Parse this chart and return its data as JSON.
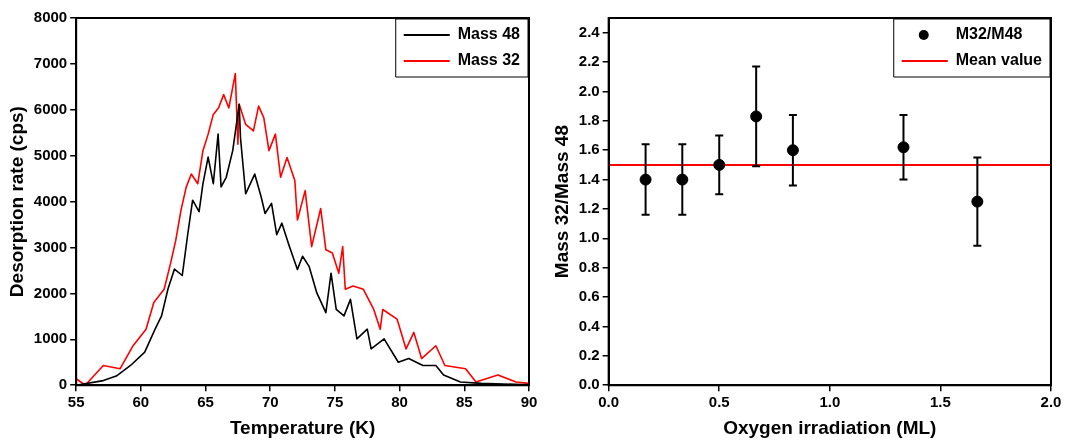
{
  "chart_data": [
    {
      "type": "line",
      "xlabel": "Temperature (K)",
      "ylabel": "Desorption rate (cps)",
      "xlim": [
        55,
        90
      ],
      "xticks": [
        55,
        60,
        65,
        70,
        75,
        80,
        85,
        90
      ],
      "ylim": [
        0,
        8000
      ],
      "yticks": [
        0,
        1000,
        2000,
        3000,
        4000,
        5000,
        6000,
        7000,
        8000
      ],
      "grid": false,
      "legend": "top right",
      "marker": "none",
      "series": [
        {
          "name": "Mass 48",
          "color": "#000000",
          "x": [
            55,
            57.1,
            58.1,
            59.2,
            60.3,
            61.1,
            61.6,
            62.1,
            62.6,
            63.2,
            63.6,
            64.0,
            64.5,
            64.8,
            65.2,
            65.6,
            65.97,
            66.2,
            66.6,
            67.1,
            67.6,
            67.7,
            68.1,
            68.8,
            69.3,
            69.6,
            70.1,
            70.5,
            70.9,
            71.4,
            72.1,
            72.5,
            73.0,
            73.6,
            74.3,
            74.7,
            75.1,
            75.7,
            76.2,
            76.7,
            77.5,
            77.8,
            78.8,
            79.9,
            80.7,
            81.8,
            82.8,
            83.4,
            84.7,
            86.3,
            90
          ],
          "values": [
            0,
            100,
            200,
            430,
            720,
            1220,
            1510,
            2100,
            2530,
            2390,
            3240,
            4030,
            3780,
            4390,
            4970,
            4390,
            5470,
            4320,
            4530,
            5110,
            6120,
            5390,
            4170,
            4600,
            4100,
            3740,
            3960,
            3280,
            3530,
            3090,
            2520,
            2810,
            2590,
            2010,
            1580,
            2440,
            1650,
            1510,
            1870,
            1010,
            1220,
            790,
            1010,
            500,
            580,
            430,
            430,
            220,
            70,
            40,
            10
          ]
        },
        {
          "name": "Mass 32",
          "color": "#ff0000",
          "x": [
            55,
            55.7,
            57.1,
            58.4,
            59.4,
            60.4,
            61.0,
            61.8,
            62.3,
            62.7,
            63.1,
            63.5,
            63.9,
            64.4,
            64.8,
            65.2,
            65.6,
            66.0,
            66.4,
            66.8,
            67.3,
            67.5,
            67.6,
            68.1,
            68.7,
            69.1,
            69.5,
            69.9,
            70.4,
            70.8,
            71.3,
            71.9,
            72.1,
            72.7,
            73.2,
            73.9,
            74.3,
            74.8,
            75.3,
            75.6,
            75.8,
            76.4,
            77.2,
            78.0,
            78.5,
            78.7,
            79.8,
            80.5,
            81.1,
            81.7,
            82.8,
            83.5,
            85.1,
            85.9,
            87.6,
            89.0,
            90
          ],
          "values": [
            140,
            0,
            430,
            360,
            860,
            1220,
            1800,
            2090,
            2660,
            3160,
            3810,
            4310,
            4600,
            4390,
            5110,
            5470,
            5900,
            6040,
            6330,
            6040,
            6790,
            5250,
            6120,
            5680,
            5540,
            6080,
            5830,
            5110,
            5470,
            4530,
            4960,
            4460,
            3600,
            4240,
            3020,
            3850,
            2950,
            2880,
            2440,
            3020,
            2090,
            2160,
            2090,
            1650,
            1220,
            1650,
            1440,
            790,
            1150,
            580,
            860,
            430,
            360,
            70,
            220,
            70,
            40
          ]
        }
      ]
    },
    {
      "type": "scatter",
      "xlabel": "Oxygen irradiation (ML)",
      "ylabel": "Mass 32/Mass 48",
      "xlim": [
        0,
        2
      ],
      "xticks": [
        {
          "value": 0,
          "label": "0.0"
        },
        {
          "value": 0.5,
          "label": "0.5"
        },
        {
          "value": 1,
          "label": "1.0"
        },
        {
          "value": 1.5,
          "label": "1.5"
        },
        {
          "value": 2,
          "label": "2.0"
        }
      ],
      "ylim": [
        0,
        2.5
      ],
      "yticks": [
        {
          "value": 0,
          "label": "0.0"
        },
        {
          "value": 0.2,
          "label": "0.2"
        },
        {
          "value": 0.4,
          "label": "0.4"
        },
        {
          "value": 0.6,
          "label": "0.6"
        },
        {
          "value": 0.8,
          "label": "0.8"
        },
        {
          "value": 1,
          "label": "1.0"
        },
        {
          "value": 1.2,
          "label": "1.2"
        },
        {
          "value": 1.4,
          "label": "1.4"
        },
        {
          "value": 1.6,
          "label": "1.6"
        },
        {
          "value": 1.8,
          "label": "1.8"
        },
        {
          "value": 2,
          "label": "2.0"
        },
        {
          "value": 2.2,
          "label": "2.2"
        },
        {
          "value": 2.4,
          "label": "2.4"
        }
      ],
      "grid": false,
      "legend": "top right",
      "marker": "circle",
      "series": [
        {
          "name": "M32/M48",
          "color": "#000000",
          "x": [
            0.167,
            0.333,
            0.5,
            0.667,
            0.833,
            1.333,
            1.667
          ],
          "values": [
            1.4,
            1.4,
            1.5,
            1.83,
            1.6,
            1.62,
            1.25
          ],
          "errors": [
            0.24,
            0.24,
            0.2,
            0.34,
            0.24,
            0.22,
            0.3
          ]
        }
      ],
      "ref_lines": [
        {
          "axis": "y",
          "value": 1.5,
          "label": "Mean value",
          "color": "#ff0000"
        }
      ]
    }
  ]
}
